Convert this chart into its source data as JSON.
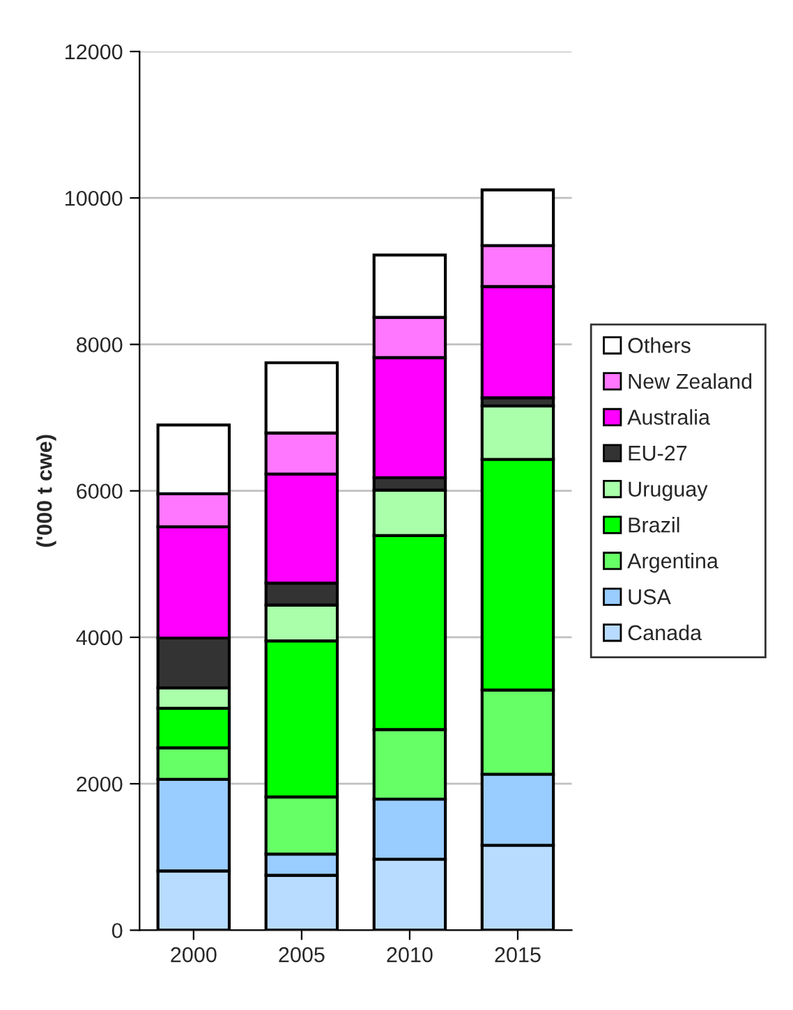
{
  "chart_data": {
    "type": "bar",
    "stacked": true,
    "ylabel": "('000 t cwe)",
    "categories": [
      "2000",
      "2005",
      "2010",
      "2015"
    ],
    "series": [
      {
        "name": "Canada",
        "color": "#b8dcff",
        "values": [
          810,
          750,
          970,
          1160
        ]
      },
      {
        "name": "USA",
        "color": "#99ccff",
        "values": [
          1250,
          290,
          820,
          970
        ]
      },
      {
        "name": "Argentina",
        "color": "#66ff66",
        "values": [
          430,
          780,
          950,
          1150
        ]
      },
      {
        "name": "Brazil",
        "color": "#00ff00",
        "values": [
          540,
          2130,
          2650,
          3150
        ]
      },
      {
        "name": "Uruguay",
        "color": "#aaffaa",
        "values": [
          280,
          490,
          620,
          730
        ]
      },
      {
        "name": "EU-27",
        "color": "#333333",
        "values": [
          680,
          300,
          170,
          110
        ]
      },
      {
        "name": "Australia",
        "color": "#ff00ff",
        "values": [
          1520,
          1490,
          1640,
          1520
        ]
      },
      {
        "name": "New Zealand",
        "color": "#ff77ff",
        "values": [
          450,
          560,
          550,
          560
        ]
      },
      {
        "name": "Others",
        "color": "#ffffff",
        "values": [
          940,
          960,
          850,
          760
        ]
      }
    ],
    "ylim": [
      0,
      12000
    ],
    "yticks": [
      0,
      2000,
      4000,
      6000,
      8000,
      10000,
      12000
    ],
    "grid": "y",
    "legend": "right"
  }
}
